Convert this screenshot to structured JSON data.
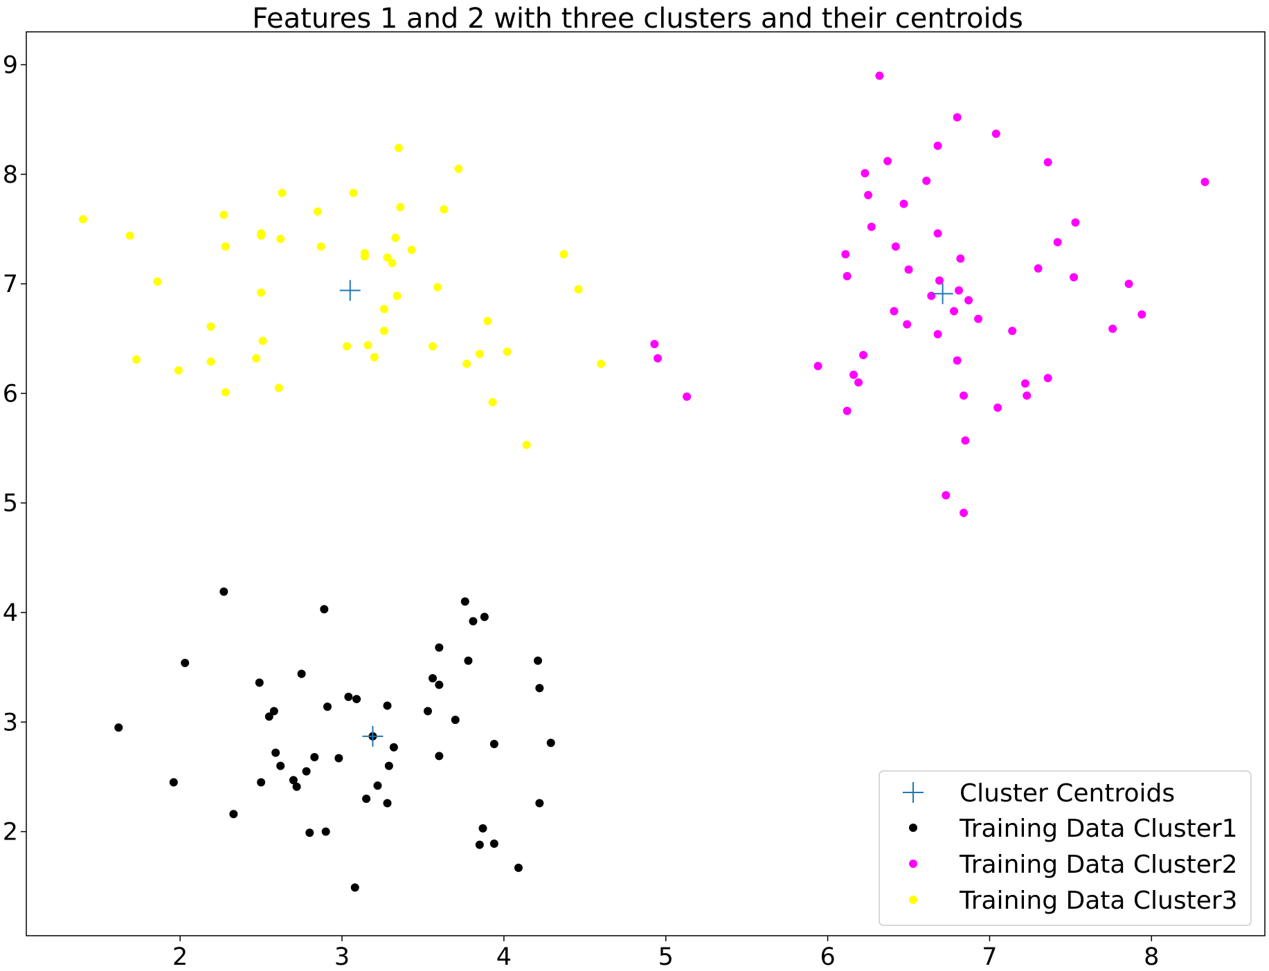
{
  "chart_data": {
    "type": "scatter",
    "title": "Features 1 and 2 with three clusters and their centroids",
    "xlabel": "",
    "ylabel": "",
    "xlim": [
      1.05,
      8.7
    ],
    "ylim": [
      1.05,
      9.3
    ],
    "xticks": [
      "2",
      "3",
      "4",
      "5",
      "6",
      "7",
      "8"
    ],
    "yticks": [
      "2",
      "3",
      "4",
      "5",
      "6",
      "7",
      "8",
      "9"
    ],
    "grid": false,
    "legend_position": "bottom-right",
    "series": [
      {
        "name": "Cluster Centroids",
        "marker": "plus",
        "color": "#1f77b4",
        "points": [
          [
            3.05,
            6.94
          ],
          [
            6.71,
            6.91
          ],
          [
            3.19,
            2.87
          ]
        ]
      },
      {
        "name": "Training Data Cluster1",
        "marker": "circle",
        "color": "#000000",
        "points": [
          [
            1.62,
            2.95
          ],
          [
            1.96,
            2.45
          ],
          [
            2.03,
            3.54
          ],
          [
            2.27,
            4.19
          ],
          [
            2.33,
            2.16
          ],
          [
            2.49,
            3.36
          ],
          [
            2.5,
            2.45
          ],
          [
            2.55,
            3.05
          ],
          [
            2.58,
            3.1
          ],
          [
            2.59,
            2.72
          ],
          [
            2.62,
            2.6
          ],
          [
            2.7,
            2.47
          ],
          [
            2.72,
            2.41
          ],
          [
            2.75,
            3.44
          ],
          [
            2.78,
            2.55
          ],
          [
            2.8,
            1.99
          ],
          [
            2.83,
            2.68
          ],
          [
            2.89,
            4.03
          ],
          [
            2.9,
            2.0
          ],
          [
            2.91,
            3.14
          ],
          [
            2.98,
            2.67
          ],
          [
            3.04,
            3.23
          ],
          [
            3.08,
            1.49
          ],
          [
            3.09,
            3.21
          ],
          [
            3.15,
            2.3
          ],
          [
            3.19,
            2.87
          ],
          [
            3.22,
            2.42
          ],
          [
            3.28,
            3.15
          ],
          [
            3.28,
            2.26
          ],
          [
            3.29,
            2.6
          ],
          [
            3.32,
            2.77
          ],
          [
            3.53,
            3.1
          ],
          [
            3.56,
            3.4
          ],
          [
            3.6,
            3.68
          ],
          [
            3.6,
            2.69
          ],
          [
            3.6,
            3.34
          ],
          [
            3.7,
            3.02
          ],
          [
            3.76,
            4.1
          ],
          [
            3.78,
            3.56
          ],
          [
            3.81,
            3.92
          ],
          [
            3.85,
            1.88
          ],
          [
            3.87,
            2.03
          ],
          [
            3.88,
            3.96
          ],
          [
            3.94,
            2.8
          ],
          [
            3.94,
            1.89
          ],
          [
            4.09,
            1.67
          ],
          [
            4.21,
            3.56
          ],
          [
            4.22,
            3.31
          ],
          [
            4.22,
            2.26
          ],
          [
            4.29,
            2.81
          ]
        ]
      },
      {
        "name": "Training Data Cluster2",
        "marker": "circle",
        "color": "#ff00ff",
        "points": [
          [
            4.93,
            6.45
          ],
          [
            4.95,
            6.32
          ],
          [
            5.13,
            5.97
          ],
          [
            5.94,
            6.25
          ],
          [
            6.11,
            7.27
          ],
          [
            6.12,
            7.07
          ],
          [
            6.12,
            5.84
          ],
          [
            6.16,
            6.17
          ],
          [
            6.19,
            6.1
          ],
          [
            6.22,
            6.35
          ],
          [
            6.23,
            8.01
          ],
          [
            6.25,
            7.81
          ],
          [
            6.27,
            7.52
          ],
          [
            6.32,
            8.9
          ],
          [
            6.37,
            8.12
          ],
          [
            6.41,
            6.75
          ],
          [
            6.42,
            7.34
          ],
          [
            6.47,
            7.73
          ],
          [
            6.49,
            6.63
          ],
          [
            6.5,
            7.13
          ],
          [
            6.61,
            7.94
          ],
          [
            6.64,
            6.89
          ],
          [
            6.68,
            8.26
          ],
          [
            6.68,
            7.46
          ],
          [
            6.68,
            6.54
          ],
          [
            6.69,
            7.03
          ],
          [
            6.73,
            5.07
          ],
          [
            6.78,
            6.75
          ],
          [
            6.8,
            8.52
          ],
          [
            6.8,
            6.3
          ],
          [
            6.81,
            6.94
          ],
          [
            6.82,
            7.23
          ],
          [
            6.84,
            4.91
          ],
          [
            6.84,
            5.98
          ],
          [
            6.85,
            5.57
          ],
          [
            6.87,
            6.85
          ],
          [
            6.93,
            6.68
          ],
          [
            7.04,
            8.37
          ],
          [
            7.05,
            5.87
          ],
          [
            7.14,
            6.57
          ],
          [
            7.22,
            6.09
          ],
          [
            7.23,
            5.98
          ],
          [
            7.3,
            7.14
          ],
          [
            7.36,
            8.11
          ],
          [
            7.36,
            6.14
          ],
          [
            7.42,
            7.38
          ],
          [
            7.52,
            7.06
          ],
          [
            7.53,
            7.56
          ],
          [
            7.76,
            6.59
          ],
          [
            7.86,
            7.0
          ],
          [
            7.94,
            6.72
          ],
          [
            8.33,
            7.93
          ]
        ]
      },
      {
        "name": "Training Data Cluster3",
        "marker": "circle",
        "color": "#ffff00",
        "points": [
          [
            1.4,
            7.59
          ],
          [
            1.69,
            7.44
          ],
          [
            1.73,
            6.31
          ],
          [
            1.86,
            7.02
          ],
          [
            1.99,
            6.21
          ],
          [
            2.19,
            6.61
          ],
          [
            2.19,
            6.29
          ],
          [
            2.27,
            7.63
          ],
          [
            2.28,
            7.34
          ],
          [
            2.28,
            6.01
          ],
          [
            2.47,
            6.32
          ],
          [
            2.5,
            7.46
          ],
          [
            2.5,
            7.44
          ],
          [
            2.5,
            6.92
          ],
          [
            2.51,
            6.48
          ],
          [
            2.61,
            6.05
          ],
          [
            2.62,
            7.41
          ],
          [
            2.63,
            7.83
          ],
          [
            2.85,
            7.66
          ],
          [
            2.87,
            7.34
          ],
          [
            3.03,
            6.43
          ],
          [
            3.07,
            7.83
          ],
          [
            3.14,
            7.28
          ],
          [
            3.14,
            7.25
          ],
          [
            3.16,
            6.44
          ],
          [
            3.2,
            6.33
          ],
          [
            3.26,
            6.57
          ],
          [
            3.26,
            6.77
          ],
          [
            3.28,
            7.24
          ],
          [
            3.31,
            7.19
          ],
          [
            3.33,
            7.42
          ],
          [
            3.34,
            6.89
          ],
          [
            3.35,
            8.24
          ],
          [
            3.36,
            7.7
          ],
          [
            3.43,
            7.31
          ],
          [
            3.56,
            6.43
          ],
          [
            3.59,
            6.97
          ],
          [
            3.63,
            7.68
          ],
          [
            3.72,
            8.05
          ],
          [
            3.77,
            6.27
          ],
          [
            3.85,
            6.36
          ],
          [
            3.9,
            6.66
          ],
          [
            3.93,
            5.92
          ],
          [
            4.02,
            6.38
          ],
          [
            4.14,
            5.53
          ],
          [
            4.37,
            7.27
          ],
          [
            4.46,
            6.95
          ],
          [
            4.6,
            6.27
          ]
        ]
      }
    ]
  }
}
